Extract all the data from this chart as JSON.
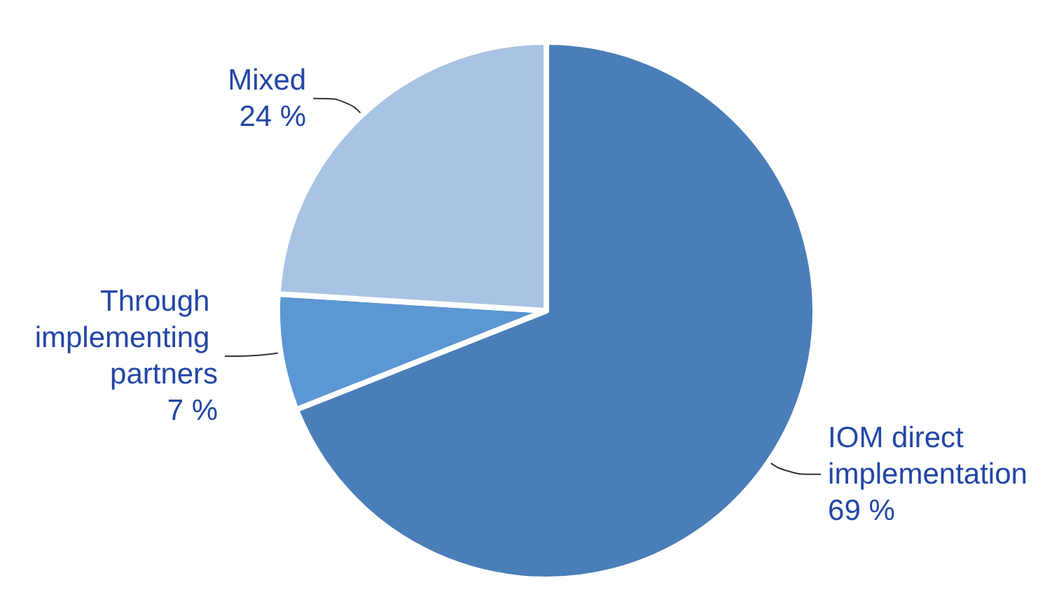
{
  "chart_data": {
    "type": "pie",
    "categories": [
      "IOM direct implementation",
      "Through implementing partners",
      "Mixed"
    ],
    "values": [
      69,
      7,
      24
    ],
    "value_labels": [
      "69 %",
      "7 %",
      "24 %"
    ],
    "colors": [
      "#4a7eb8",
      "#5b97d3",
      "#a9c3e4"
    ],
    "legend": false
  }
}
